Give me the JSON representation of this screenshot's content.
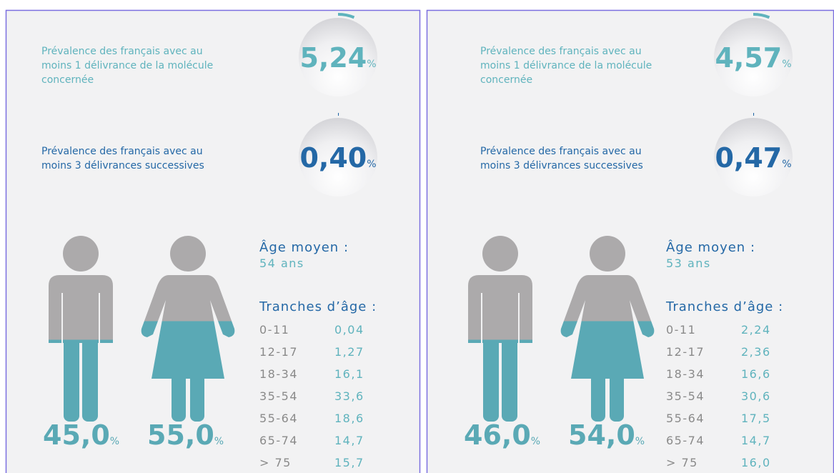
{
  "panels": [
    {
      "prevalence_1": {
        "label": [
          "Prévalence des français avec au",
          "moins 1 délivrance de la molécule",
          "concernée"
        ],
        "value": "5,24",
        "unit": "%"
      },
      "prevalence_3": {
        "label": [
          "Prévalence des français avec au",
          "moins 3 délivrances successives"
        ],
        "value": "0,40",
        "unit": "%"
      },
      "men": {
        "value": "45,0",
        "unit": "%"
      },
      "women": {
        "value": "55,0",
        "unit": "%"
      },
      "age_mean": {
        "label": "Âge moyen :",
        "value": "54 ans"
      },
      "age_brackets": {
        "label": "Tranches d’âge :",
        "rows": [
          [
            "0-11",
            "0,04"
          ],
          [
            "12-17",
            "1,27"
          ],
          [
            "18-34",
            "16,1"
          ],
          [
            "35-54",
            "33,6"
          ],
          [
            "55-64",
            "18,6"
          ],
          [
            "65-74",
            "14,7"
          ],
          [
            "> 75",
            "15,7"
          ]
        ]
      }
    },
    {
      "prevalence_1": {
        "label": [
          "Prévalence des français avec au",
          "moins 1 délivrance de la molécule",
          "concernée"
        ],
        "value": "4,57",
        "unit": "%"
      },
      "prevalence_3": {
        "label": [
          "Prévalence des français avec au",
          "moins 3 délivrances successives"
        ],
        "value": "0,47",
        "unit": "%"
      },
      "men": {
        "value": "46,0",
        "unit": "%"
      },
      "women": {
        "value": "54,0",
        "unit": "%"
      },
      "age_mean": {
        "label": "Âge moyen :",
        "value": "53 ans"
      },
      "age_brackets": {
        "label": "Tranches d’âge :",
        "rows": [
          [
            "0-11",
            "2,24"
          ],
          [
            "12-17",
            "2,36"
          ],
          [
            "18-34",
            "16,6"
          ],
          [
            "35-54",
            "30,6"
          ],
          [
            "55-64",
            "17,5"
          ],
          [
            "65-74",
            "14,7"
          ],
          [
            "> 75",
            "16,0"
          ]
        ]
      }
    }
  ]
}
